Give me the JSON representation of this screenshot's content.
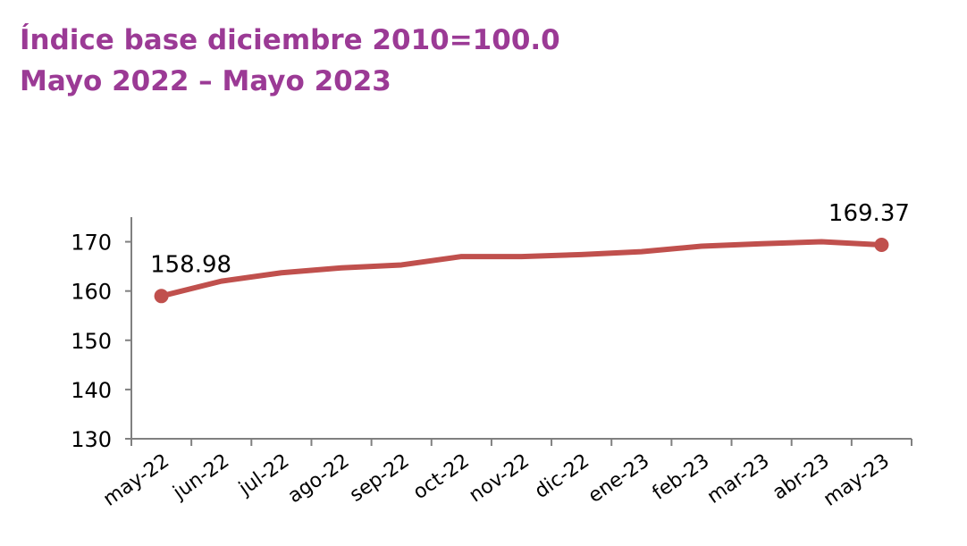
{
  "title_line1": "Índice base diciembre 2010=100.0",
  "title_line2": "Mayo 2022 – Mayo 2023",
  "chart_data": {
    "type": "line",
    "categories": [
      "may-22",
      "jun-22",
      "jul-22",
      "ago-22",
      "sep-22",
      "oct-22",
      "nov-22",
      "dic-22",
      "ene-23",
      "feb-23",
      "mar-23",
      "abr-23",
      "may-23"
    ],
    "series": [
      {
        "values": [
          158.98,
          162.0,
          163.7,
          164.7,
          165.3,
          167.0,
          167.0,
          167.4,
          168.0,
          169.1,
          169.6,
          170.0,
          169.37
        ]
      }
    ],
    "yticks": [
      130,
      140,
      150,
      160,
      170
    ],
    "ylim": [
      130,
      175
    ],
    "grid": false,
    "line_color": "#c0504d",
    "data_labels": [
      {
        "index": 0,
        "text": "158.98"
      },
      {
        "index": 12,
        "text": "169.37"
      }
    ]
  }
}
